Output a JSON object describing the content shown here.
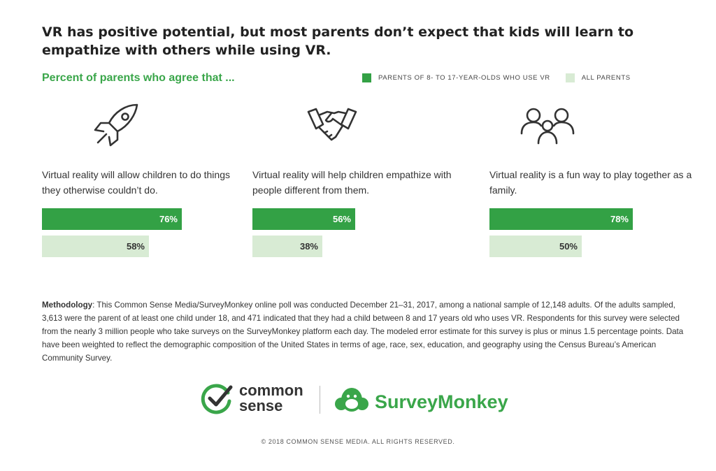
{
  "title": "VR has positive potential, but most parents don’t expect that kids will learn to empathize with others while using VR.",
  "subtitle": "Percent of parents who agree that ...",
  "colors": {
    "vr_parents": "#33a145",
    "all_parents": "#d8ebd4",
    "accent": "#3aa64a"
  },
  "chart_data": {
    "type": "bar",
    "categories": [
      "Virtual reality will allow children to do things they otherwise couldn’t do.",
      "Virtual reality will help children empathize with people different from them.",
      "Virtual reality is a fun way to play together as a family."
    ],
    "series": [
      {
        "name": "PARENTS OF 8- TO 17-YEAR-OLDS WHO USE VR",
        "values": [
          76,
          56,
          78
        ],
        "labels": [
          "76%",
          "56%",
          "78%"
        ]
      },
      {
        "name": "ALL PARENTS",
        "values": [
          58,
          38,
          50
        ],
        "labels": [
          "58%",
          "38%",
          "50%"
        ]
      }
    ],
    "unit": "%",
    "icons": [
      "rocket-icon",
      "handshake-icon",
      "family-icon"
    ]
  },
  "methodology": {
    "label": "Methodology",
    "text": ": This Common Sense Media/SurveyMonkey online poll was conducted December 21–31, 2017, among a national sample of 12,148 adults. Of the adults sampled, 3,613 were the parent of at least one child under 18, and 471 indicated that they had a child between 8 and 17 years old who uses VR. Respondents for this survey were selected from the nearly 3 million people who take surveys on the SurveyMonkey platform each day. The modeled error estimate for this survey is plus or minus 1.5 percentage points. Data have been weighted to reflect the demographic composition of the United States in terms of age, race, sex, education, and geography using the Census Bureau’s American Community Survey."
  },
  "logos": {
    "common_sense_line1": "common",
    "common_sense_line2": "sense",
    "surveymonkey": "SurveyMonkey"
  },
  "copyright": "© 2018 COMMON SENSE MEDIA. ALL RIGHTS RESERVED."
}
